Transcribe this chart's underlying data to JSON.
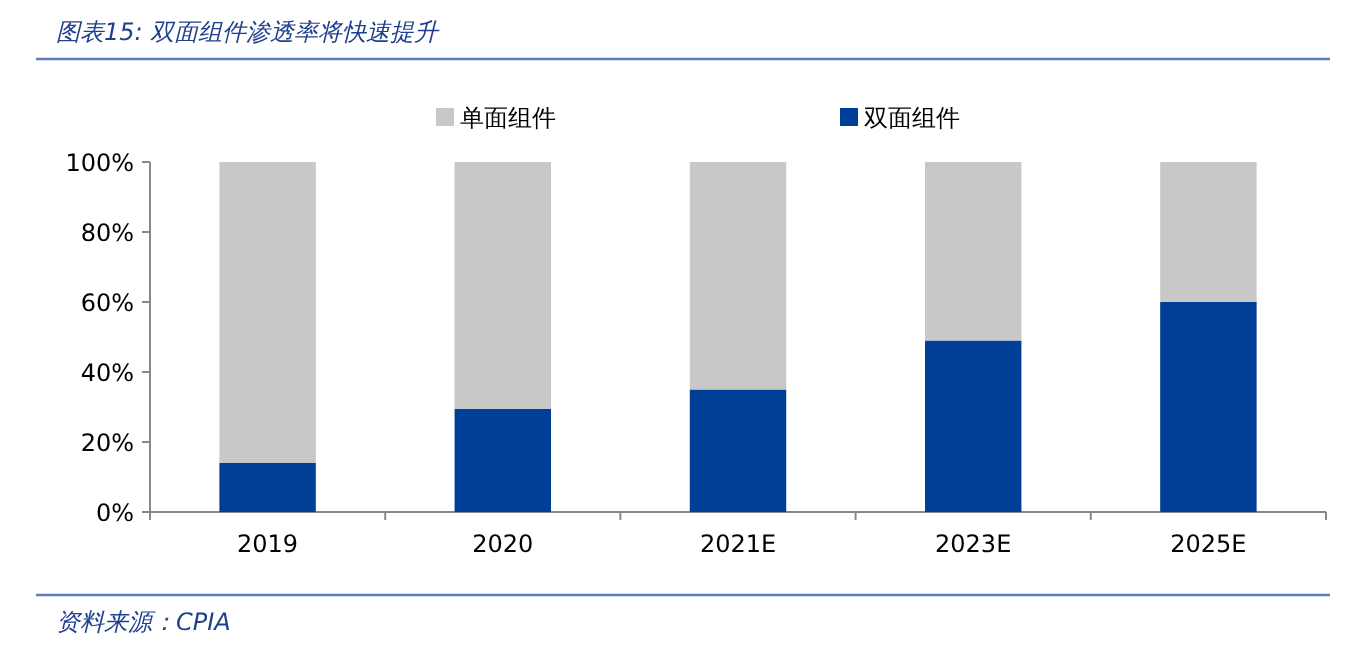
{
  "chart_data": {
    "type": "bar",
    "title": "图表15:  双面组件渗透率将快速提升",
    "categories": [
      "2019",
      "2020",
      "2021E",
      "2023E",
      "2025E"
    ],
    "stacked": true,
    "series": [
      {
        "name": "双面组件",
        "color": "#003f98",
        "values": [
          14,
          29.5,
          35,
          49,
          60
        ]
      },
      {
        "name": "单面组件",
        "color": "#c8c8c8",
        "values": [
          86,
          70.5,
          65,
          51,
          40
        ]
      }
    ],
    "ylim": [
      0,
      100
    ],
    "yticks": [
      {
        "value": 0,
        "label": "0%"
      },
      {
        "value": 20,
        "label": "20%"
      },
      {
        "value": 40,
        "label": "40%"
      },
      {
        "value": 60,
        "label": "60%"
      },
      {
        "value": 80,
        "label": "80%"
      },
      {
        "value": 100,
        "label": "100%"
      }
    ],
    "grid": false,
    "legend": "top",
    "annotations": [
      "资料来源：CPIA"
    ]
  }
}
